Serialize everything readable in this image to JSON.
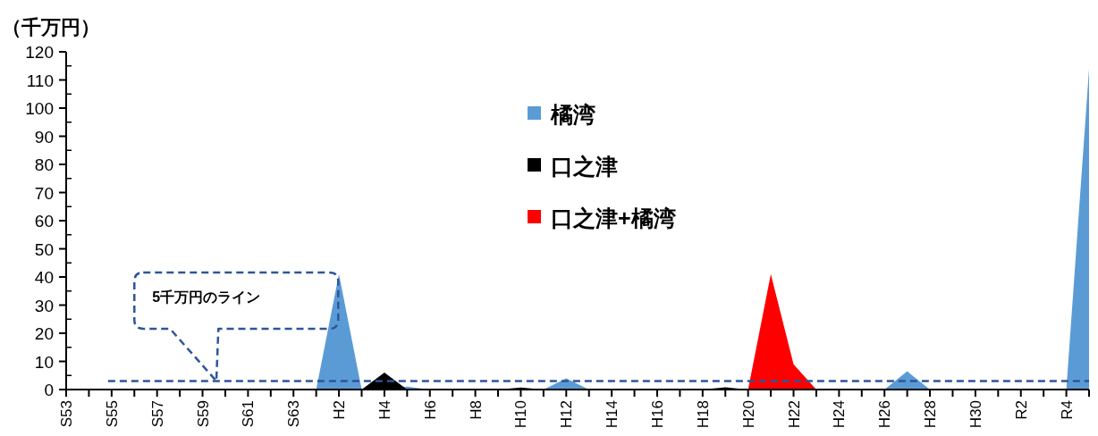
{
  "chart_data": {
    "type": "area",
    "ylabel": "（千万円）",
    "categories": [
      "S53",
      null,
      "S55",
      null,
      "S57",
      null,
      "S59",
      null,
      "S61",
      null,
      "S63",
      null,
      "H2",
      null,
      "H4",
      null,
      "H6",
      null,
      "H8",
      null,
      "H10",
      null,
      "H12",
      null,
      "H14",
      null,
      "H16",
      null,
      "H18",
      null,
      "H20",
      null,
      "H22",
      null,
      "H24",
      null,
      "H26",
      null,
      "H28",
      null,
      "H30",
      null,
      "R2",
      null,
      "R4",
      null
    ],
    "series": [
      {
        "name": "橘湾",
        "color": "#5b9bd5",
        "values": [
          0,
          0,
          0,
          0,
          0,
          0,
          0,
          0,
          0,
          0,
          0,
          0,
          41,
          0,
          null,
          1,
          0,
          0,
          0,
          0,
          0,
          0,
          4,
          0,
          0,
          0,
          0,
          0,
          0,
          0,
          0,
          0,
          0,
          0,
          0,
          0,
          0,
          6.5,
          0,
          0,
          0,
          0,
          0,
          0,
          0,
          114
        ]
      },
      {
        "name": "口之津",
        "color": "#000000",
        "values": [
          0,
          0,
          0,
          0,
          0,
          0,
          0,
          0,
          0,
          0,
          0,
          0,
          0,
          0,
          6,
          0,
          0,
          0,
          0,
          0,
          0.7,
          0,
          0,
          0,
          0,
          0,
          0,
          0,
          0,
          0.8,
          0,
          0,
          0,
          0,
          0,
          0,
          0,
          0,
          0,
          0,
          0,
          0,
          0,
          0,
          0,
          0
        ]
      },
      {
        "name": "口之津+橘湾",
        "color": "#ff0000",
        "values": [
          0,
          0,
          0,
          0,
          0,
          0,
          0,
          0,
          0,
          0,
          0,
          0,
          0,
          0,
          0,
          0,
          0,
          0,
          0,
          0,
          0,
          0,
          0,
          0,
          0,
          0,
          0,
          0,
          0,
          0,
          0,
          41,
          9,
          0,
          0,
          0,
          0,
          0,
          0,
          0,
          0,
          0,
          0,
          0,
          0,
          0
        ]
      }
    ],
    "ylim": [
      0,
      120
    ],
    "yticks": [
      0,
      10,
      20,
      30,
      40,
      50,
      60,
      70,
      80,
      90,
      100,
      110,
      120
    ],
    "ref_lines": [
      {
        "axis": "y",
        "value": 3,
        "color": "#2f5597",
        "line_style": "dashed"
      }
    ],
    "annotations": [
      "5千万円のライン"
    ],
    "legend": "top",
    "grid": false
  }
}
